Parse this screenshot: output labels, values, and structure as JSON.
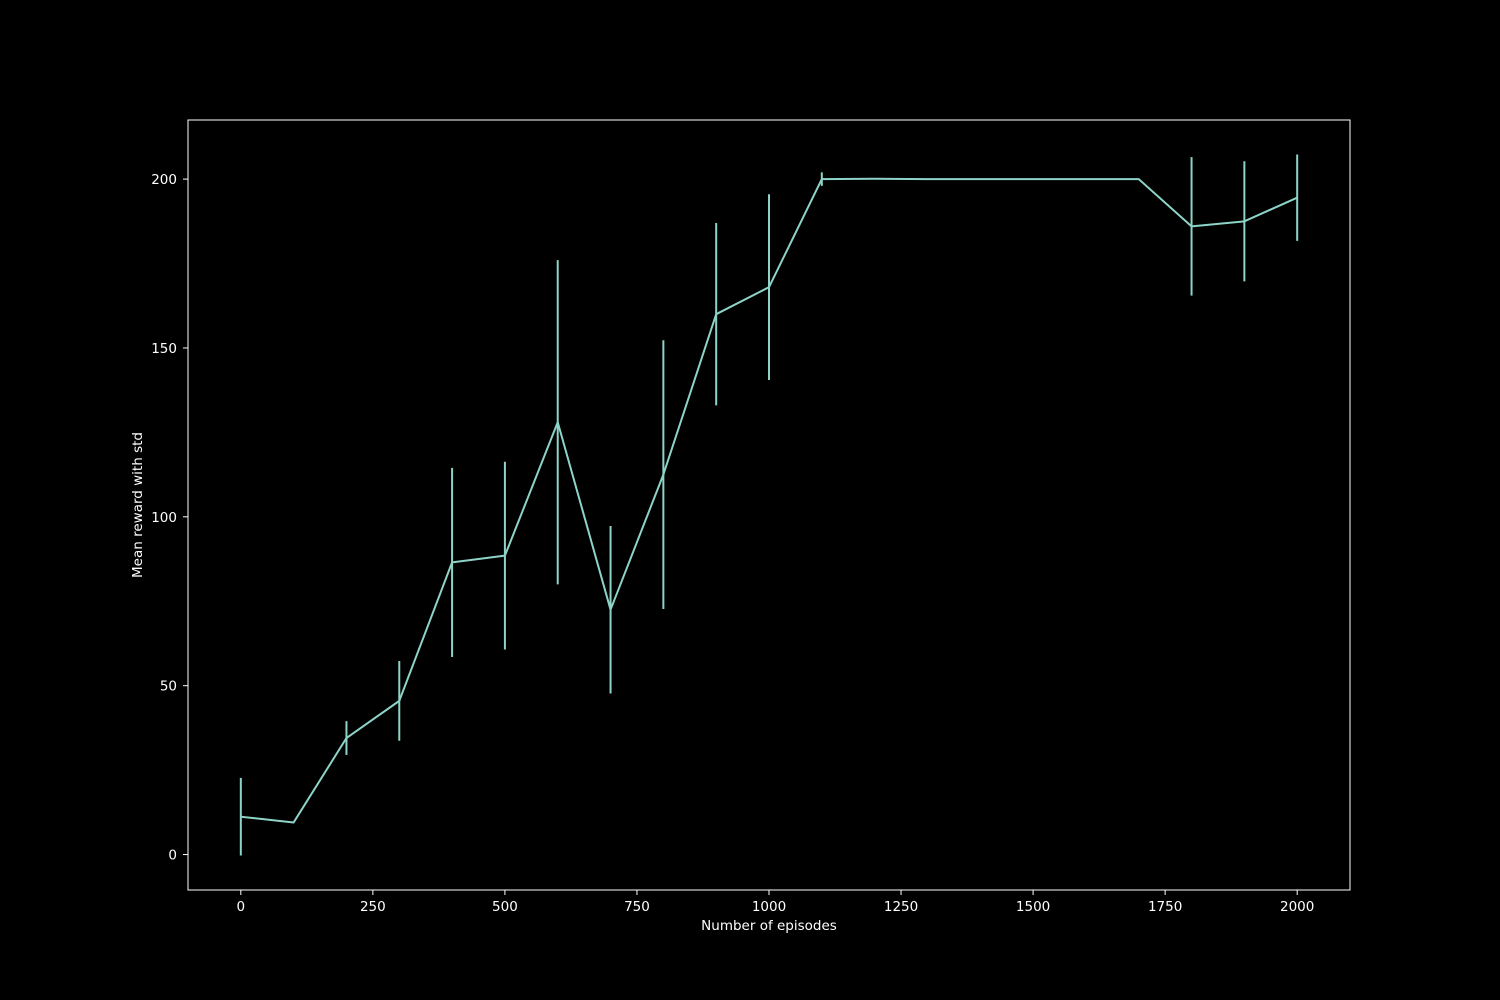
{
  "chart_data": {
    "type": "line",
    "title": "",
    "xlabel": "Number of episodes",
    "ylabel": "Mean reward with std",
    "xlim": [
      -100,
      2100
    ],
    "ylim": [
      -10.5,
      217.5
    ],
    "xticks": [
      0,
      250,
      500,
      750,
      1000,
      1250,
      1500,
      1750,
      2000
    ],
    "yticks": [
      0,
      50,
      100,
      150,
      200
    ],
    "grid": false,
    "legend": "none",
    "colors": {
      "background": "#000000",
      "axes": "#ffffff",
      "series": "#8dd3c7"
    },
    "series": [
      {
        "x": [
          0,
          100,
          200,
          300,
          400,
          500,
          600,
          700,
          800,
          900,
          1000,
          1100,
          1200,
          1300,
          1400,
          1500,
          1600,
          1700,
          1800,
          1900,
          2000
        ],
        "y": [
          11.2,
          9.5,
          34.5,
          45.5,
          86.5,
          88.5,
          128,
          72.5,
          112.5,
          160,
          168,
          200,
          200.1,
          200,
          200,
          200,
          200,
          200,
          186,
          187.5,
          194.5
        ],
        "std": [
          11.5,
          0,
          5,
          11.8,
          28,
          27.8,
          48,
          24.8,
          39.8,
          27,
          27.5,
          2,
          0,
          0,
          0,
          0,
          0,
          0,
          20.5,
          17.8,
          12.8
        ]
      }
    ]
  }
}
